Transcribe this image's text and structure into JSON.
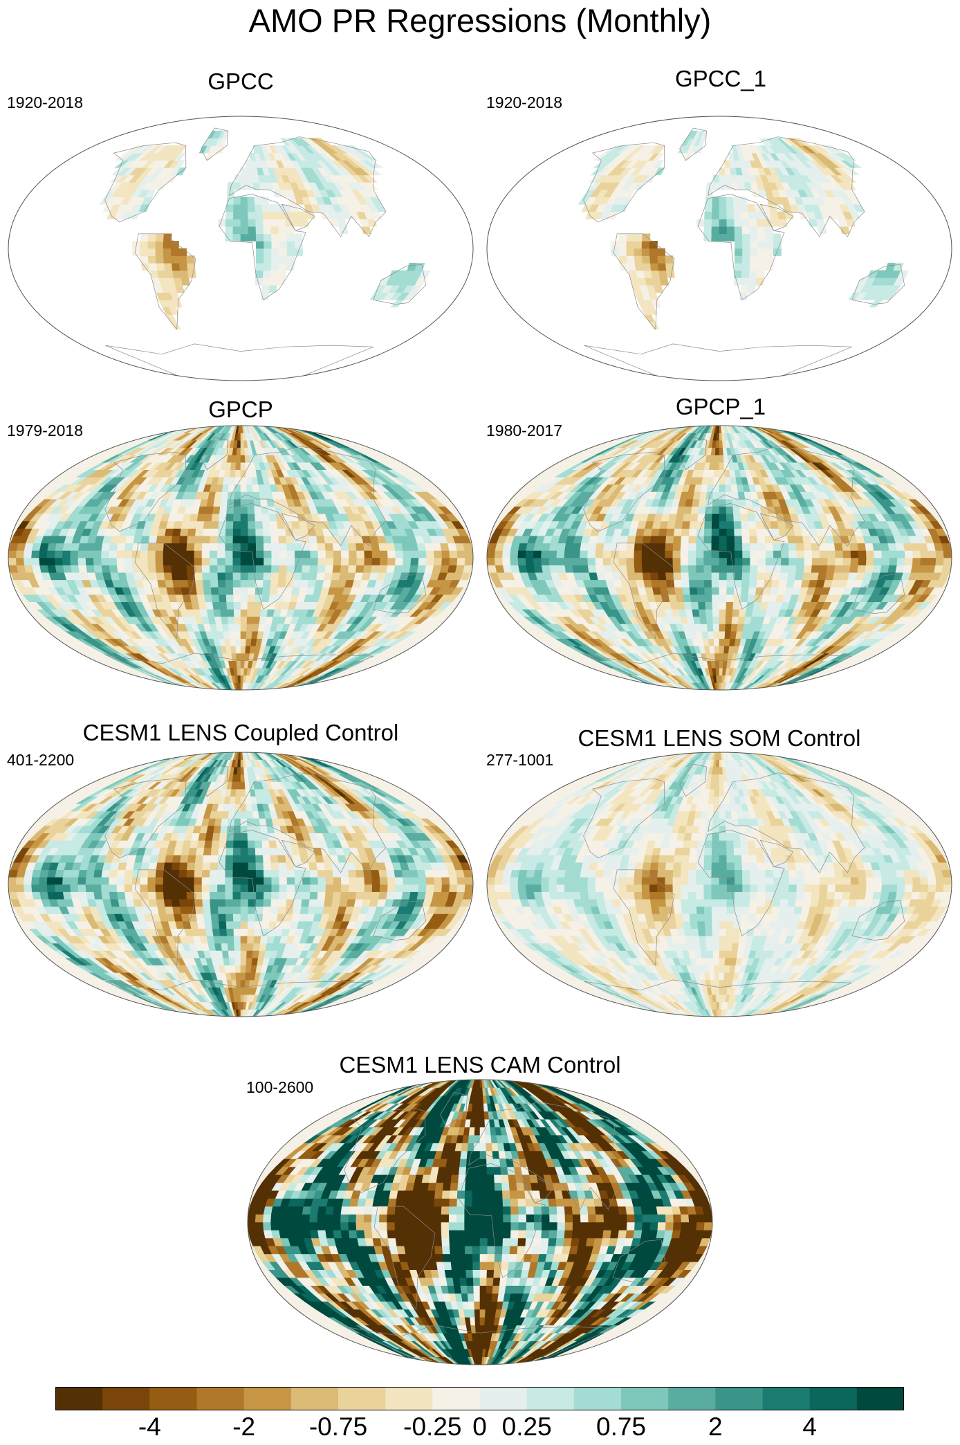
{
  "figure": {
    "title": "AMO PR Regressions (Monthly)"
  },
  "chart_data": [
    {
      "type": "heatmap",
      "title": "GPCC",
      "period": "1920-2018",
      "coverage": "land-only",
      "pattern": "weak"
    },
    {
      "type": "heatmap",
      "title": "GPCC_1",
      "period": "1920-2018",
      "coverage": "land-only",
      "pattern": "weak"
    },
    {
      "type": "heatmap",
      "title": "GPCP",
      "period": "1979-2018",
      "coverage": "global",
      "pattern": "moderate"
    },
    {
      "type": "heatmap",
      "title": "GPCP_1",
      "period": "1980-2017",
      "coverage": "global",
      "pattern": "moderate"
    },
    {
      "type": "heatmap",
      "title": "CESM1 LENS Coupled Control",
      "period": "401-2200",
      "coverage": "global",
      "pattern": "moderate"
    },
    {
      "type": "heatmap",
      "title": "CESM1 LENS SOM Control",
      "period": "277-1001",
      "coverage": "global",
      "pattern": "weak"
    },
    {
      "type": "heatmap",
      "title": "CESM1 LENS CAM Control",
      "period": "100-2600",
      "coverage": "global",
      "pattern": "strong"
    }
  ],
  "colorbar": {
    "colors": [
      "#543005",
      "#7a4509",
      "#955c13",
      "#b0782a",
      "#c69645",
      "#dbba75",
      "#ead29b",
      "#f3e5c0",
      "#f5f1e6",
      "#e5f0ee",
      "#c7eae4",
      "#a2dcd2",
      "#7ec8bb",
      "#59ada0",
      "#3a9488",
      "#1b7b71",
      "#0b665c",
      "#00493e"
    ],
    "labels": [
      "-4",
      "-2",
      "-0.75",
      "-0.25",
      "0",
      "0.25",
      "0.75",
      "2",
      "4"
    ]
  }
}
